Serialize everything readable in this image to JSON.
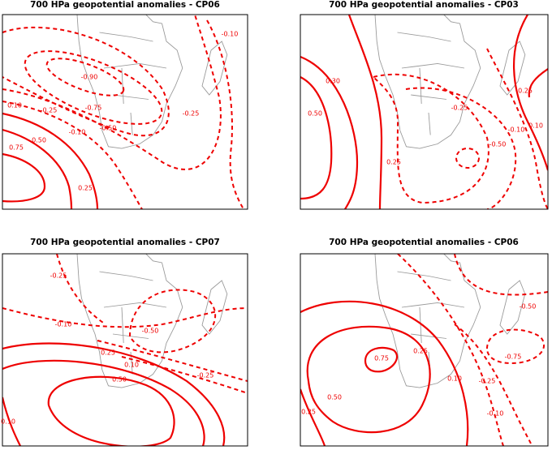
{
  "panels": [
    {
      "title": "700 HPa geopotential anomalies - CP06",
      "contour_labels": [
        "-0.10",
        "-0.90",
        "-0.75",
        "-0.50",
        "-0.25",
        "0.10",
        "-0.25",
        "-0.10",
        "0.50",
        "0.75",
        "0.25"
      ]
    },
    {
      "title": "700 HPa geopotential anomalies - CP03",
      "contour_labels": [
        "0.50",
        "0.30",
        "0.25",
        "-0.25",
        "-0.50",
        "-0.10",
        "0.10",
        "0.25"
      ]
    },
    {
      "title": "700 HPa geopotential anomalies - CP07",
      "contour_labels": [
        "-0.25",
        "-0.10",
        "-0.50",
        "0.25",
        "0.10",
        "0.50",
        "-0.25",
        "0.10"
      ]
    },
    {
      "title": "700 HPa geopotential anomalies - CP06",
      "contour_labels": [
        "-0.50",
        "-0.75",
        "0.25",
        "0.75",
        "0.50",
        "0.25",
        "0.10",
        "-0.25",
        "-0.10"
      ]
    }
  ]
}
